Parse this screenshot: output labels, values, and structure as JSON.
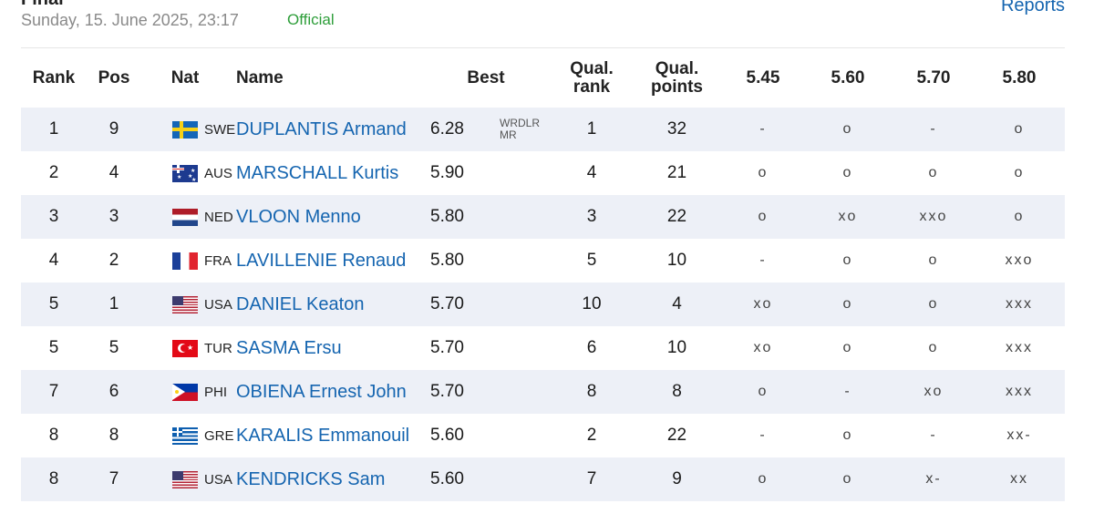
{
  "page": {
    "title": "Final",
    "datetime": "Sunday, 15. June 2025, 23:17",
    "status": "Official",
    "reports_label": "Reports"
  },
  "colors": {
    "link": "#1565b0",
    "official": "#2e9e3a",
    "row_shade": "#edf0f7"
  },
  "table": {
    "headers": {
      "rank": "Rank",
      "pos": "Pos",
      "nat": "Nat",
      "name": "Name",
      "best": "Best",
      "qual_rank_1": "Qual.",
      "qual_rank_2": "rank",
      "qual_points_1": "Qual.",
      "qual_points_2": "points",
      "h1": "5.45",
      "h2": "5.60",
      "h3": "5.70",
      "h4": "5.80"
    },
    "rows": [
      {
        "rank": "1",
        "pos": "9",
        "flag": "flag-swe",
        "nat": "SWE",
        "name": "DUPLANTIS Armand",
        "best": "6.28",
        "note1": "WRDLR",
        "note2": "MR",
        "qual_rank": "1",
        "qual_points": "32",
        "h1": "-",
        "h2": "o",
        "h3": "-",
        "h4": "o"
      },
      {
        "rank": "2",
        "pos": "4",
        "flag": "flag-aus",
        "nat": "AUS",
        "name": "MARSCHALL Kurtis",
        "best": "5.90",
        "note1": "",
        "note2": "",
        "qual_rank": "4",
        "qual_points": "21",
        "h1": "o",
        "h2": "o",
        "h3": "o",
        "h4": "o"
      },
      {
        "rank": "3",
        "pos": "3",
        "flag": "flag-ned",
        "nat": "NED",
        "name": "VLOON Menno",
        "best": "5.80",
        "note1": "",
        "note2": "",
        "qual_rank": "3",
        "qual_points": "22",
        "h1": "o",
        "h2": "xo",
        "h3": "xxo",
        "h4": "o"
      },
      {
        "rank": "4",
        "pos": "2",
        "flag": "flag-fra",
        "nat": "FRA",
        "name": "LAVILLENIE Renaud",
        "best": "5.80",
        "note1": "",
        "note2": "",
        "qual_rank": "5",
        "qual_points": "10",
        "h1": "-",
        "h2": "o",
        "h3": "o",
        "h4": "xxo"
      },
      {
        "rank": "5",
        "pos": "1",
        "flag": "flag-usa",
        "nat": "USA",
        "name": "DANIEL Keaton",
        "best": "5.70",
        "note1": "",
        "note2": "",
        "qual_rank": "10",
        "qual_points": "4",
        "h1": "xo",
        "h2": "o",
        "h3": "o",
        "h4": "xxx"
      },
      {
        "rank": "5",
        "pos": "5",
        "flag": "flag-tur",
        "nat": "TUR",
        "name": "SASMA Ersu",
        "best": "5.70",
        "note1": "",
        "note2": "",
        "qual_rank": "6",
        "qual_points": "10",
        "h1": "xo",
        "h2": "o",
        "h3": "o",
        "h4": "xxx"
      },
      {
        "rank": "7",
        "pos": "6",
        "flag": "flag-phi",
        "nat": "PHI",
        "name": "OBIENA Ernest John",
        "best": "5.70",
        "note1": "",
        "note2": "",
        "qual_rank": "8",
        "qual_points": "8",
        "h1": "o",
        "h2": "-",
        "h3": "xo",
        "h4": "xxx"
      },
      {
        "rank": "8",
        "pos": "8",
        "flag": "flag-gre",
        "nat": "GRE",
        "name": "KARALIS Emmanouil",
        "best": "5.60",
        "note1": "",
        "note2": "",
        "qual_rank": "2",
        "qual_points": "22",
        "h1": "-",
        "h2": "o",
        "h3": "-",
        "h4": "xx-"
      },
      {
        "rank": "8",
        "pos": "7",
        "flag": "flag-usa",
        "nat": "USA",
        "name": "KENDRICKS Sam",
        "best": "5.60",
        "note1": "",
        "note2": "",
        "qual_rank": "7",
        "qual_points": "9",
        "h1": "o",
        "h2": "o",
        "h3": "x-",
        "h4": "xx"
      }
    ]
  }
}
